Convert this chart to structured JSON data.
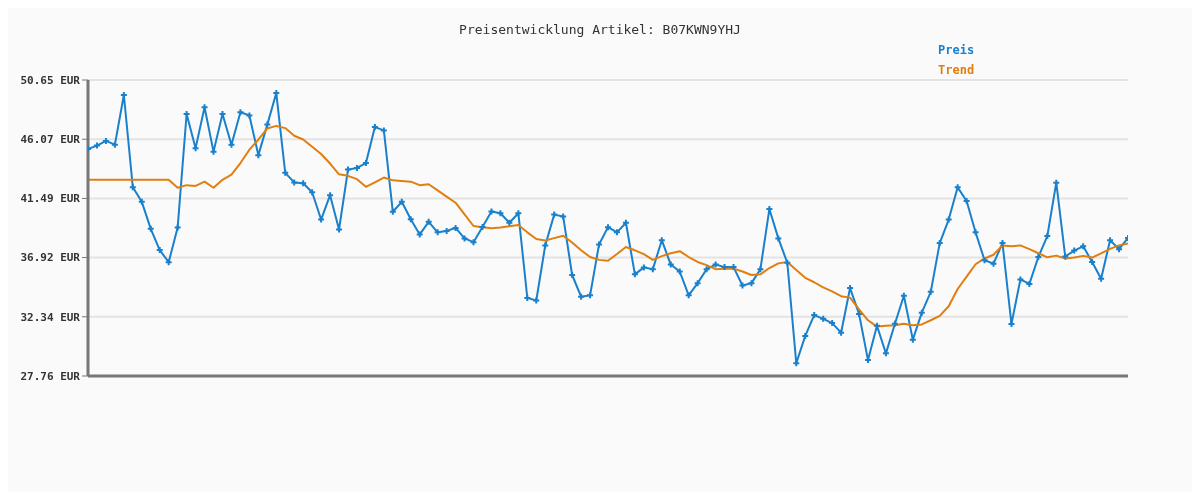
{
  "chart_data": {
    "type": "line",
    "title": "Preisentwicklung Artikel: B07KWN9YHJ",
    "categories": [
      null,
      null,
      null,
      null,
      null,
      null,
      null,
      null,
      null,
      null,
      null,
      null,
      null,
      null,
      null,
      null,
      null,
      null,
      null,
      null,
      null,
      null,
      null,
      null,
      null,
      null,
      null,
      null,
      null,
      null,
      null,
      null,
      null,
      null,
      null,
      null,
      null,
      null,
      null,
      null,
      null,
      null,
      null,
      null,
      null,
      null,
      null,
      null,
      null,
      null,
      null,
      null,
      null,
      null,
      null,
      null,
      null,
      null,
      null,
      null,
      null,
      null,
      null,
      null,
      null,
      null,
      null,
      null,
      null,
      null,
      null,
      null,
      null,
      null,
      null,
      null,
      null,
      null,
      null,
      null,
      null,
      null,
      null,
      null,
      null,
      null,
      null,
      null,
      null,
      null,
      null,
      null,
      null,
      null,
      null,
      null,
      null,
      null,
      null,
      null,
      null,
      null,
      null,
      null,
      null,
      null,
      null,
      null,
      null,
      null,
      null,
      null,
      null,
      null,
      null,
      null,
      null
    ],
    "series": [
      {
        "name": "Preis",
        "color": "#1a80cc",
        "marker": "cross",
        "values": [
          45.31,
          45.58,
          45.94,
          45.65,
          49.49,
          42.35,
          41.23,
          39.14,
          37.5,
          36.56,
          39.25,
          48.02,
          45.38,
          48.54,
          45.11,
          48.02,
          45.65,
          48.16,
          47.91,
          44.84,
          47.2,
          49.64,
          43.47,
          42.73,
          42.66,
          41.97,
          39.86,
          41.74,
          39.09,
          43.72,
          43.85,
          44.23,
          47.01,
          46.75,
          40.46,
          41.23,
          39.88,
          38.71,
          39.68,
          38.87,
          38.98,
          39.21,
          38.4,
          38.11,
          39.29,
          40.48,
          40.35,
          39.61,
          40.35,
          33.8,
          33.6,
          37.86,
          40.24,
          40.1,
          35.57,
          33.89,
          34.0,
          37.93,
          39.27,
          38.87,
          39.61,
          35.62,
          36.16,
          36.02,
          38.26,
          36.38,
          35.84,
          34.0,
          34.94,
          36.02,
          36.38,
          36.18,
          36.18,
          34.76,
          34.94,
          36.02,
          40.67,
          38.4,
          36.51,
          28.75,
          30.86,
          32.47,
          32.18,
          31.85,
          31.11,
          34.56,
          32.56,
          28.99,
          31.65,
          29.51,
          31.8,
          33.97,
          30.57,
          32.66,
          34.27,
          38.04,
          39.86,
          42.35,
          41.29,
          38.87,
          36.71,
          36.45,
          38.04,
          31.78,
          35.23,
          34.88,
          36.96,
          38.58,
          42.71,
          37.0,
          37.46,
          37.79,
          36.58,
          35.28,
          38.26,
          37.57,
          38.44
        ]
      },
      {
        "name": "Trend",
        "color": "#e07f10",
        "marker": "none",
        "values": [
          42.93,
          42.93,
          42.93,
          42.93,
          42.93,
          42.93,
          42.93,
          42.93,
          42.93,
          42.93,
          42.32,
          42.52,
          42.46,
          42.79,
          42.32,
          42.93,
          43.33,
          44.23,
          45.26,
          46.03,
          46.9,
          47.1,
          46.93,
          46.34,
          46.05,
          45.49,
          44.93,
          44.19,
          43.36,
          43.24,
          42.98,
          42.39,
          42.73,
          43.11,
          42.89,
          42.84,
          42.79,
          42.52,
          42.59,
          42.12,
          41.63,
          41.16,
          40.26,
          39.36,
          39.27,
          39.18,
          39.25,
          39.34,
          39.43,
          38.87,
          38.35,
          38.24,
          38.42,
          38.6,
          38.08,
          37.48,
          36.96,
          36.74,
          36.67,
          37.19,
          37.74,
          37.48,
          37.19,
          36.74,
          37.03,
          37.25,
          37.41,
          36.96,
          36.58,
          36.33,
          36.02,
          36.06,
          36.06,
          35.84,
          35.57,
          35.62,
          36.11,
          36.47,
          36.58,
          35.95,
          35.35,
          35.01,
          34.61,
          34.31,
          33.93,
          33.82,
          32.92,
          32.07,
          31.58,
          31.65,
          31.69,
          31.8,
          31.69,
          31.75,
          32.07,
          32.41,
          33.15,
          34.49,
          35.44,
          36.4,
          36.85,
          37.14,
          37.86,
          37.79,
          37.86,
          37.57,
          37.25,
          36.94,
          37.07,
          36.85,
          36.92,
          37.05,
          36.92,
          37.25,
          37.59,
          37.86,
          38.01
        ]
      }
    ],
    "ylim": [
      27.76,
      50.65
    ],
    "yticks": [
      {
        "value": 27.76,
        "label": "27.76 EUR"
      },
      {
        "value": 32.34,
        "label": "32.34 EUR"
      },
      {
        "value": 36.92,
        "label": "36.92 EUR"
      },
      {
        "value": 41.49,
        "label": "41.49 EUR"
      },
      {
        "value": 46.07,
        "label": "46.07 EUR"
      },
      {
        "value": 50.65,
        "label": "50.65 EUR"
      }
    ],
    "grid": "y",
    "legend": "top right",
    "line_style": "solid"
  }
}
